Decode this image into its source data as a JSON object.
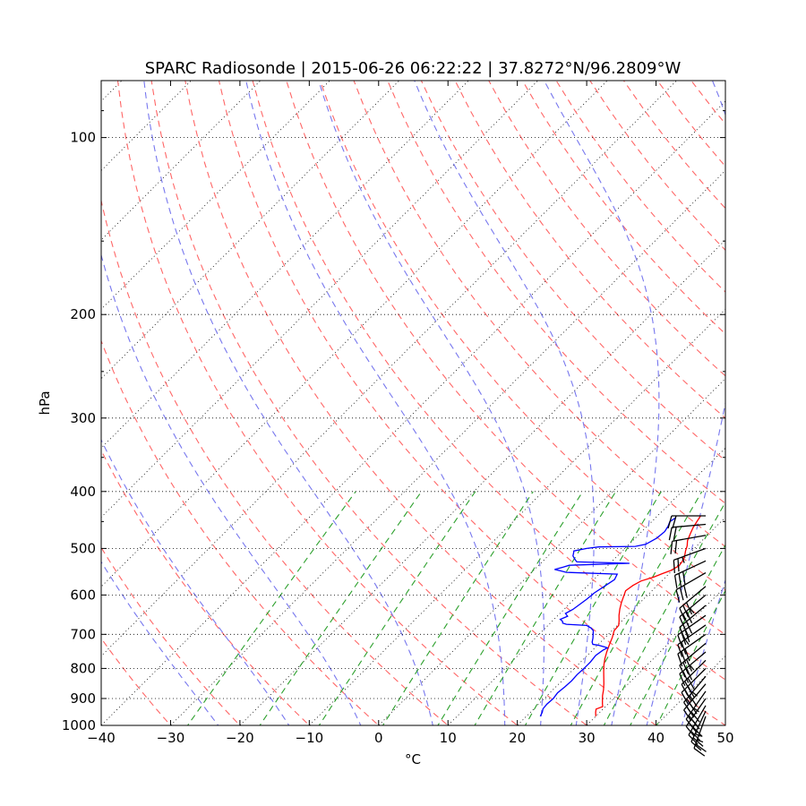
{
  "chart_data": {
    "type": "line",
    "title": "SPARC Radiosonde | 2015-06-26 06:22:22 | 37.8272°N/96.2809°W",
    "xlabel": "°C",
    "ylabel": "hPa",
    "xlim": [
      -40,
      50
    ],
    "ylim": [
      1000,
      80
    ],
    "y_scale": "log",
    "x_ticks": [
      "−40",
      "−30",
      "−20",
      "−10",
      "0",
      "10",
      "20",
      "30",
      "40",
      "50"
    ],
    "y_ticks": [
      "100",
      "200",
      "300",
      "400",
      "500",
      "600",
      "700",
      "800",
      "900",
      "1000"
    ],
    "grid": true,
    "series": [
      {
        "color": "#ff0000",
        "points": [
          [
            30.0,
            965
          ],
          [
            29.4,
            950
          ],
          [
            29.0,
            938
          ],
          [
            29.6,
            929
          ],
          [
            29.2,
            920
          ],
          [
            28.6,
            905
          ],
          [
            28.0,
            890
          ],
          [
            27.3,
            870
          ],
          [
            26.5,
            850
          ],
          [
            25.6,
            830
          ],
          [
            24.7,
            810
          ],
          [
            23.8,
            790
          ],
          [
            23.0,
            770
          ],
          [
            22.3,
            750
          ],
          [
            21.6,
            728
          ],
          [
            21.0,
            708
          ],
          [
            20.3,
            690
          ],
          [
            20.2,
            676
          ],
          [
            19.6,
            664
          ],
          [
            18.8,
            650
          ],
          [
            18.0,
            634
          ],
          [
            17.3,
            618
          ],
          [
            16.8,
            605
          ],
          [
            16.2,
            590
          ],
          [
            16.5,
            578
          ],
          [
            17.0,
            568
          ],
          [
            18.3,
            559
          ],
          [
            19.0,
            552
          ],
          [
            19.8,
            545
          ],
          [
            20.3,
            535
          ],
          [
            20.1,
            524
          ],
          [
            19.7,
            515
          ],
          [
            19.1,
            505
          ],
          [
            18.6,
            495
          ],
          [
            17.9,
            485
          ],
          [
            17.3,
            472
          ],
          [
            16.8,
            460
          ],
          [
            16.5,
            450
          ],
          [
            16.2,
            440
          ]
        ]
      },
      {
        "color": "#0000ff",
        "points": [
          [
            22.0,
            965
          ],
          [
            21.7,
            950
          ],
          [
            21.3,
            937
          ],
          [
            21.2,
            920
          ],
          [
            21.3,
            900
          ],
          [
            21.1,
            880
          ],
          [
            21.3,
            860
          ],
          [
            21.4,
            840
          ],
          [
            21.3,
            820
          ],
          [
            21.4,
            800
          ],
          [
            21.4,
            780
          ],
          [
            21.2,
            760
          ],
          [
            21.5,
            745
          ],
          [
            21.8,
            738
          ],
          [
            21.2,
            735
          ],
          [
            20.0,
            730
          ],
          [
            19.2,
            728
          ],
          [
            18.8,
            722
          ],
          [
            18.3,
            710
          ],
          [
            17.8,
            700
          ],
          [
            17.3,
            690
          ],
          [
            16.6,
            683
          ],
          [
            15.6,
            676
          ],
          [
            12.5,
            673
          ],
          [
            11.8,
            670
          ],
          [
            11.5,
            665
          ],
          [
            10.9,
            660
          ],
          [
            11.5,
            652
          ],
          [
            10.8,
            645
          ],
          [
            11.3,
            635
          ],
          [
            11.5,
            625
          ],
          [
            11.8,
            610
          ],
          [
            12.0,
            595
          ],
          [
            12.5,
            580
          ],
          [
            13.0,
            565
          ],
          [
            12.6,
            553
          ],
          [
            5.0,
            549
          ],
          [
            4.0,
            546
          ],
          [
            2.9,
            543
          ],
          [
            3.8,
            538
          ],
          [
            4.4,
            534
          ],
          [
            12.8,
            530
          ],
          [
            5.0,
            527
          ],
          [
            4.5,
            523
          ],
          [
            3.6,
            515
          ],
          [
            3.2,
            508
          ],
          [
            3.0,
            505
          ],
          [
            4.5,
            500
          ],
          [
            6.0,
            497
          ],
          [
            11.2,
            496
          ],
          [
            12.4,
            492
          ],
          [
            13.1,
            480
          ],
          [
            13.3,
            468
          ],
          [
            13.0,
            458
          ],
          [
            12.6,
            450
          ],
          [
            12.9,
            443
          ]
        ]
      }
    ],
    "wind_barbs": {
      "color": "#000000",
      "points": [
        {
          "p": 965,
          "dir": 200,
          "speed": 25
        },
        {
          "p": 945,
          "dir": 205,
          "speed": 25
        },
        {
          "p": 925,
          "dir": 210,
          "speed": 30
        },
        {
          "p": 900,
          "dir": 215,
          "speed": 30
        },
        {
          "p": 875,
          "dir": 215,
          "speed": 35
        },
        {
          "p": 850,
          "dir": 220,
          "speed": 30
        },
        {
          "p": 825,
          "dir": 220,
          "speed": 35
        },
        {
          "p": 800,
          "dir": 225,
          "speed": 30
        },
        {
          "p": 775,
          "dir": 225,
          "speed": 30
        },
        {
          "p": 750,
          "dir": 230,
          "speed": 35
        },
        {
          "p": 725,
          "dir": 230,
          "speed": 30
        },
        {
          "p": 700,
          "dir": 235,
          "speed": 30
        },
        {
          "p": 675,
          "dir": 235,
          "speed": 25
        },
        {
          "p": 650,
          "dir": 235,
          "speed": 30
        },
        {
          "p": 625,
          "dir": 230,
          "speed": 30
        },
        {
          "p": 600,
          "dir": 230,
          "speed": 35
        },
        {
          "p": 580,
          "dir": 230,
          "speed": 30
        },
        {
          "p": 550,
          "dir": 240,
          "speed": 30
        },
        {
          "p": 525,
          "dir": 245,
          "speed": 30
        },
        {
          "p": 500,
          "dir": 250,
          "speed": 25
        },
        {
          "p": 475,
          "dir": 260,
          "speed": 20
        },
        {
          "p": 455,
          "dir": 265,
          "speed": 20
        },
        {
          "p": 440,
          "dir": 270,
          "speed": 20
        }
      ]
    }
  }
}
